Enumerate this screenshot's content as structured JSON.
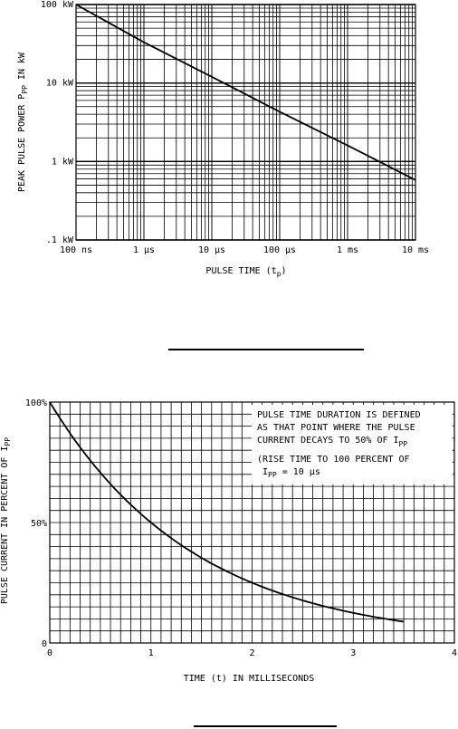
{
  "chart_data": [
    {
      "type": "line",
      "title": "",
      "xscale": "log",
      "yscale": "log",
      "xlabel": "PULSE TIME (tp)",
      "xlabel_main": "PULSE TIME (t",
      "xlabel_sub": "p",
      "xlabel_tail": ")",
      "ylabel": "PEAK PULSE POWER Ppp IN kW",
      "ylabel_main": "PEAK PULSE POWER P",
      "ylabel_sub": "PP",
      "ylabel_tail": " IN kW",
      "xlim_seconds": [
        1e-07,
        0.01
      ],
      "ylim_kw": [
        0.1,
        100
      ],
      "x_ticks": [
        {
          "value": 1e-07,
          "label": "100 ns"
        },
        {
          "value": 1e-06,
          "label": "1 µs"
        },
        {
          "value": 1e-05,
          "label": "10 µs"
        },
        {
          "value": 0.0001,
          "label": "100 µs"
        },
        {
          "value": 0.001,
          "label": "1 ms"
        },
        {
          "value": 0.01,
          "label": "10 ms"
        }
      ],
      "y_ticks": [
        {
          "value": 0.1,
          "label": ".1 kW"
        },
        {
          "value": 1,
          "label": "1 kW"
        },
        {
          "value": 10,
          "label": "10 kW"
        },
        {
          "value": 100,
          "label": "100 kW"
        }
      ],
      "grid": true,
      "series": [
        {
          "x": [
            1e-07,
            1e-06,
            1e-05,
            0.0001,
            0.001,
            0.01
          ],
          "y": [
            100,
            33,
            12,
            4.3,
            1.6,
            0.58
          ]
        }
      ]
    },
    {
      "type": "line",
      "title": "",
      "xlabel": "TIME (t) IN MILLISECONDS",
      "ylabel": "PULSE CURRENT IN PERCENT OF Ipp",
      "ylabel_main": "PULSE CURRENT IN PERCENT OF I",
      "ylabel_sub": "PP",
      "xlim": [
        0,
        4
      ],
      "ylim": [
        0,
        100
      ],
      "x_ticks": [
        {
          "value": 0,
          "label": "0"
        },
        {
          "value": 1,
          "label": "1"
        },
        {
          "value": 2,
          "label": "2"
        },
        {
          "value": 3,
          "label": "3"
        },
        {
          "value": 4,
          "label": "4"
        }
      ],
      "y_ticks": [
        {
          "value": 0,
          "label": "0"
        },
        {
          "value": 50,
          "label": "50%"
        },
        {
          "value": 100,
          "label": "100%"
        }
      ],
      "grid": true,
      "annotation": {
        "line1": "PULSE TIME DURATION IS DEFINED",
        "line2": "AS THAT POINT WHERE THE PULSE",
        "line3_main": "CURRENT DECAYS TO 50% OF I",
        "line3_sub": "PP",
        "line4": "(RISE TIME TO 100 PERCENT OF",
        "line5_main": "I",
        "line5_sub": "PP",
        "line5_tail": " = 10 µs"
      },
      "series": [
        {
          "x": [
            0,
            0.5,
            1.0,
            1.5,
            2.0,
            2.5,
            3.0,
            3.5
          ],
          "y": [
            100,
            70.7,
            50,
            35.4,
            25,
            17.7,
            12.5,
            8.8
          ]
        }
      ]
    }
  ]
}
